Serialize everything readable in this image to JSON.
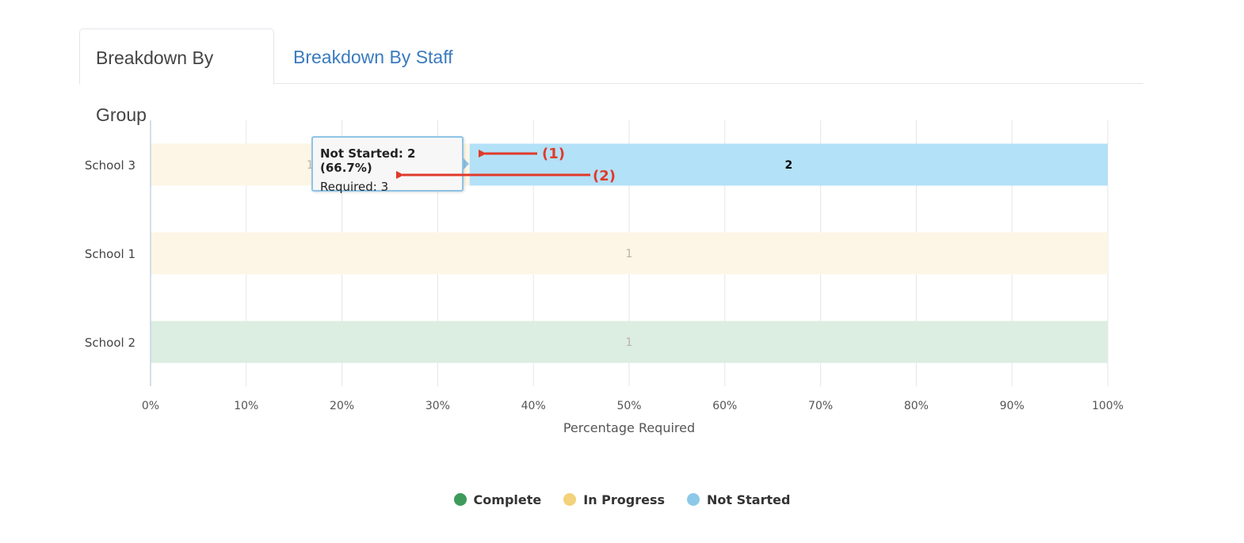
{
  "tabs": [
    {
      "label": "Breakdown By Group",
      "active": true
    },
    {
      "label": "Breakdown By Staff",
      "active": false
    }
  ],
  "tooltip": {
    "line1": "Not Started: 2 (66.7%)",
    "line2": "Required: 3"
  },
  "annotations": [
    "(1)",
    "(2)"
  ],
  "legend": [
    {
      "label": "Complete",
      "color": "#3e9b5c"
    },
    {
      "label": "In Progress",
      "color": "#f2d27a"
    },
    {
      "label": "Not Started",
      "color": "#8ec8e8"
    }
  ],
  "chart_data": {
    "type": "bar",
    "orientation": "horizontal",
    "stacked": true,
    "categories": [
      "School 3",
      "School 1",
      "School 2"
    ],
    "series": [
      {
        "name": "Complete",
        "color": "#dcede1",
        "values": [
          0,
          0,
          1
        ]
      },
      {
        "name": "In Progress",
        "color": "#fdf6e6",
        "values": [
          1,
          1,
          0
        ]
      },
      {
        "name": "Not Started",
        "color": "#b3e1f8",
        "values": [
          2,
          0,
          0
        ]
      }
    ],
    "xlabel": "Percentage Required",
    "xlim": [
      0,
      100
    ],
    "xticks": [
      "0%",
      "10%",
      "20%",
      "30%",
      "40%",
      "50%",
      "60%",
      "70%",
      "80%",
      "90%",
      "100%"
    ],
    "grid": true,
    "legend_position": "bottom"
  }
}
